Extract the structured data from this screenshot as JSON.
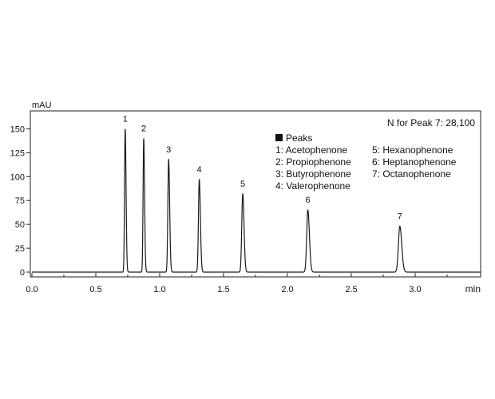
{
  "chart_data": {
    "type": "line",
    "title": "",
    "xlabel": "min",
    "ylabel": "mAU",
    "xlim": [
      0,
      3.5
    ],
    "ylim": [
      -5,
      160
    ],
    "x_ticks": [
      {
        "value": 0.0,
        "label": "0.0"
      },
      {
        "value": 0.5,
        "label": "0.5"
      },
      {
        "value": 1.0,
        "label": "1.0"
      },
      {
        "value": 1.5,
        "label": "1.5"
      },
      {
        "value": 2.0,
        "label": "2.0"
      },
      {
        "value": 2.5,
        "label": "2.5"
      },
      {
        "value": 3.0,
        "label": "3.0"
      }
    ],
    "y_ticks": [
      {
        "value": 0,
        "label": "0"
      },
      {
        "value": 25,
        "label": "25"
      },
      {
        "value": 50,
        "label": "50"
      },
      {
        "value": 75,
        "label": "75"
      },
      {
        "value": 100,
        "label": "100"
      },
      {
        "value": 125,
        "label": "125"
      },
      {
        "value": 150,
        "label": "150"
      }
    ],
    "grid": false,
    "legend_position": "top-right",
    "line_color": "#1a1a1a",
    "annotation": "N for Peak 7: 28,100",
    "legend": {
      "heading": "Peaks",
      "col1": [
        "1: Acetophenone",
        "2: Propiophenone",
        "3: Butyrophenone",
        "4: Valerophenone"
      ],
      "col2": [
        "5: Hexanophenone",
        "6: Heptanophenone",
        "7: Octanophenone"
      ]
    },
    "peaks": [
      {
        "label": "1",
        "time": 0.73,
        "height": 150,
        "width": 0.005
      },
      {
        "label": "2",
        "time": 0.875,
        "height": 140,
        "width": 0.005
      },
      {
        "label": "3",
        "time": 1.07,
        "height": 118,
        "width": 0.006
      },
      {
        "label": "4",
        "time": 1.31,
        "height": 97,
        "width": 0.0065
      },
      {
        "label": "5",
        "time": 1.65,
        "height": 82,
        "width": 0.0075
      },
      {
        "label": "6",
        "time": 2.16,
        "height": 65,
        "width": 0.009
      },
      {
        "label": "7",
        "time": 2.88,
        "height": 48,
        "width": 0.011
      }
    ]
  }
}
